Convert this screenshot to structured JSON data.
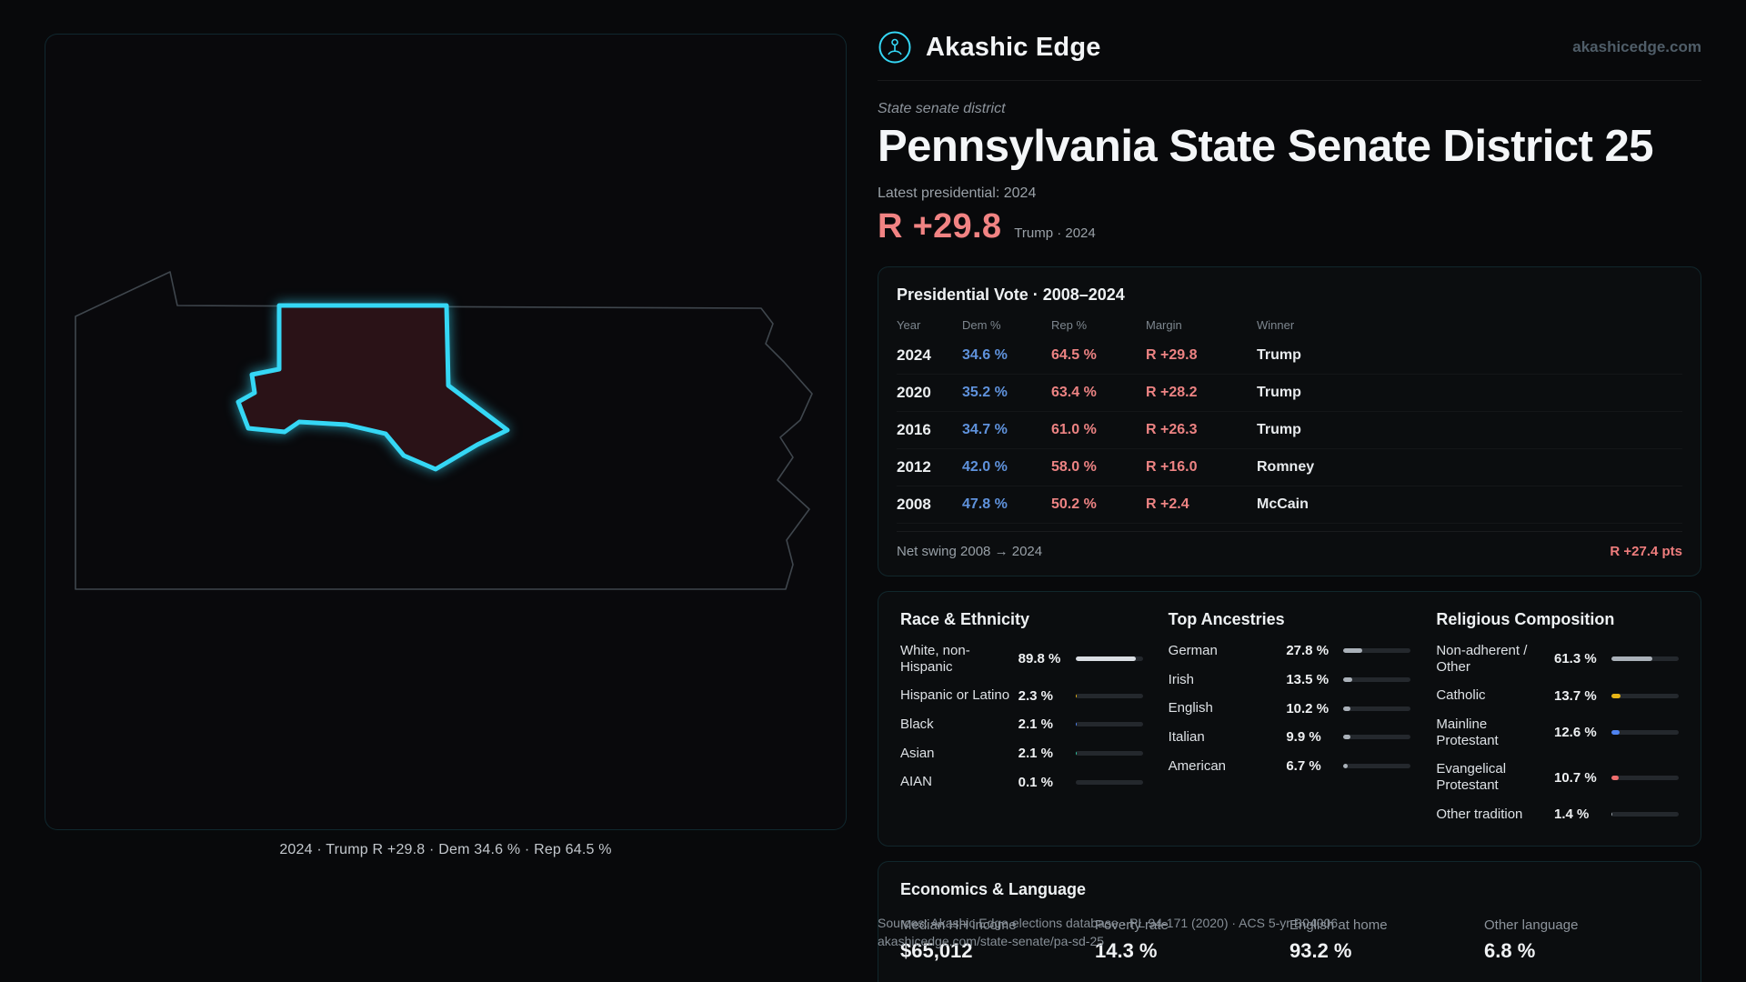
{
  "brand": {
    "name": "Akashic Edge",
    "domain": "akashicedge.com"
  },
  "hero": {
    "kicker": "State senate district",
    "title": "Pennsylvania State Senate District 25",
    "latest_label": "Latest presidential: 2024",
    "margin_value": "R +29.8",
    "margin_note": "Trump · 2024"
  },
  "map": {
    "caption": "2024 · Trump R +29.8 · Dem 34.6 % · Rep 64.5 %",
    "district_color": "#35d7f5",
    "district_fill": "#2a1217"
  },
  "colors": {
    "dem": "#5f92dc",
    "rep": "#ed8383",
    "accent": "#35d7f5"
  },
  "presidential_table": {
    "title": "Presidential Vote · 2008–2024",
    "columns": [
      "Year",
      "Dem %",
      "Rep %",
      "Margin",
      "Winner"
    ],
    "rows": [
      {
        "year": "2024",
        "dem": "34.6 %",
        "rep": "64.5 %",
        "margin": "R +29.8",
        "winner": "Trump"
      },
      {
        "year": "2020",
        "dem": "35.2 %",
        "rep": "63.4 %",
        "margin": "R +28.2",
        "winner": "Trump"
      },
      {
        "year": "2016",
        "dem": "34.7 %",
        "rep": "61.0 %",
        "margin": "R +26.3",
        "winner": "Trump"
      },
      {
        "year": "2012",
        "dem": "42.0 %",
        "rep": "58.0 %",
        "margin": "R +16.0",
        "winner": "Romney"
      },
      {
        "year": "2008",
        "dem": "47.8 %",
        "rep": "50.2 %",
        "margin": "R +2.4",
        "winner": "McCain"
      }
    ],
    "net_swing_label": "Net swing 2008 → 2024",
    "net_swing_value": "R +27.4 pts"
  },
  "demographics": {
    "race": {
      "title": "Race & Ethnicity",
      "rows": [
        {
          "label": "White, non-Hispanic",
          "value": "89.8 %",
          "pct": 89.8,
          "color": "#d9dde2"
        },
        {
          "label": "Hispanic or Latino",
          "value": "2.3 %",
          "pct": 2.3,
          "color": "#e7b416"
        },
        {
          "label": "Black",
          "value": "2.1 %",
          "pct": 2.1,
          "color": "#4f83f1"
        },
        {
          "label": "Asian",
          "value": "2.1 %",
          "pct": 2.1,
          "color": "#2ec4a0"
        },
        {
          "label": "AIAN",
          "value": "0.1 %",
          "pct": 0.1,
          "color": "#9aa2ab"
        }
      ]
    },
    "ancestries": {
      "title": "Top Ancestries",
      "rows": [
        {
          "label": "German",
          "value": "27.8 %",
          "pct": 27.8,
          "color": "#aab1b9"
        },
        {
          "label": "Irish",
          "value": "13.5 %",
          "pct": 13.5,
          "color": "#aab1b9"
        },
        {
          "label": "English",
          "value": "10.2 %",
          "pct": 10.2,
          "color": "#aab1b9"
        },
        {
          "label": "Italian",
          "value": "9.9 %",
          "pct": 9.9,
          "color": "#aab1b9"
        },
        {
          "label": "American",
          "value": "6.7 %",
          "pct": 6.7,
          "color": "#aab1b9"
        }
      ]
    },
    "religion": {
      "title": "Religious Composition",
      "rows": [
        {
          "label": "Non-adherent / Other",
          "value": "61.3 %",
          "pct": 61.3,
          "color": "#aab1b9"
        },
        {
          "label": "Catholic",
          "value": "13.7 %",
          "pct": 13.7,
          "color": "#e7b416"
        },
        {
          "label": "Mainline Protestant",
          "value": "12.6 %",
          "pct": 12.6,
          "color": "#4f83f1"
        },
        {
          "label": "Evangelical Protestant",
          "value": "10.7 %",
          "pct": 10.7,
          "color": "#ef6e6e"
        },
        {
          "label": "Other tradition",
          "value": "1.4 %",
          "pct": 1.4,
          "color": "#9aa2ab"
        }
      ]
    }
  },
  "economics": {
    "title": "Economics & Language",
    "stats": [
      {
        "label": "Median HH income",
        "value": "$65,012"
      },
      {
        "label": "Poverty rate",
        "value": "14.3 %"
      },
      {
        "label": "English at home",
        "value": "93.2 %"
      },
      {
        "label": "Other language",
        "value": "6.8 %"
      }
    ]
  },
  "sources": {
    "line1": "Sources: Akashic Edge elections database · PL 94-171 (2020) · ACS 5-yr B04006",
    "line2": "akashicedge.com/state-senate/pa-sd-25"
  }
}
